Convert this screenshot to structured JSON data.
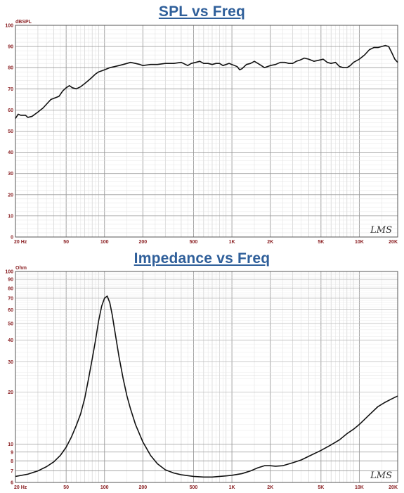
{
  "chart_data": [
    {
      "type": "line",
      "title": "SPL vs Freq",
      "ylabel": "dBSPL",
      "xscale": "log",
      "xlim": [
        20,
        20000
      ],
      "ylim": [
        0,
        100
      ],
      "grid": true,
      "xticks": [
        {
          "value": 20,
          "label": "20 Hz"
        },
        {
          "value": 50,
          "label": "50"
        },
        {
          "value": 100,
          "label": "100"
        },
        {
          "value": 200,
          "label": "200"
        },
        {
          "value": 500,
          "label": "500"
        },
        {
          "value": 1000,
          "label": "1K"
        },
        {
          "value": 2000,
          "label": "2K"
        },
        {
          "value": 5000,
          "label": "5K"
        },
        {
          "value": 10000,
          "label": "10K"
        },
        {
          "value": 20000,
          "label": "20K"
        }
      ],
      "yticks": [
        {
          "value": 0,
          "label": "0"
        },
        {
          "value": 10,
          "label": "10"
        },
        {
          "value": 20,
          "label": "20"
        },
        {
          "value": 30,
          "label": "30"
        },
        {
          "value": 40,
          "label": "40"
        },
        {
          "value": 50,
          "label": "50"
        },
        {
          "value": 60,
          "label": "60"
        },
        {
          "value": 70,
          "label": "70"
        },
        {
          "value": 80,
          "label": "80"
        },
        {
          "value": 90,
          "label": "90"
        },
        {
          "value": 100,
          "label": "100"
        }
      ],
      "watermark": "LMS",
      "series": [
        {
          "color": "#111111",
          "points": [
            [
              20,
              56
            ],
            [
              21,
              58
            ],
            [
              22,
              57.5
            ],
            [
              24,
              57.5
            ],
            [
              25,
              56.5
            ],
            [
              27,
              57
            ],
            [
              30,
              59
            ],
            [
              33,
              61
            ],
            [
              36,
              63.5
            ],
            [
              38,
              65
            ],
            [
              42,
              66
            ],
            [
              44,
              66.5
            ],
            [
              47,
              69
            ],
            [
              50,
              70.5
            ],
            [
              53,
              71.5
            ],
            [
              56,
              70.5
            ],
            [
              60,
              70
            ],
            [
              65,
              71
            ],
            [
              70,
              72.5
            ],
            [
              75,
              74
            ],
            [
              80,
              75.5
            ],
            [
              85,
              77
            ],
            [
              90,
              78
            ],
            [
              95,
              78.5
            ],
            [
              100,
              79
            ],
            [
              110,
              80
            ],
            [
              120,
              80.5
            ],
            [
              130,
              81
            ],
            [
              140,
              81.5
            ],
            [
              150,
              82
            ],
            [
              160,
              82.5
            ],
            [
              175,
              82
            ],
            [
              190,
              81.5
            ],
            [
              200,
              81
            ],
            [
              230,
              81.5
            ],
            [
              260,
              81.5
            ],
            [
              300,
              82
            ],
            [
              350,
              82
            ],
            [
              400,
              82.5
            ],
            [
              450,
              81
            ],
            [
              480,
              82
            ],
            [
              520,
              82.5
            ],
            [
              560,
              83
            ],
            [
              600,
              82
            ],
            [
              650,
              82
            ],
            [
              700,
              81.5
            ],
            [
              750,
              82
            ],
            [
              800,
              82
            ],
            [
              850,
              81
            ],
            [
              900,
              81.5
            ],
            [
              950,
              82
            ],
            [
              1000,
              81.5
            ],
            [
              1100,
              80.5
            ],
            [
              1150,
              79
            ],
            [
              1200,
              79.5
            ],
            [
              1300,
              81.5
            ],
            [
              1400,
              82
            ],
            [
              1500,
              83
            ],
            [
              1600,
              82
            ],
            [
              1700,
              81
            ],
            [
              1800,
              80
            ],
            [
              1900,
              80.5
            ],
            [
              2000,
              81
            ],
            [
              2200,
              81.5
            ],
            [
              2400,
              82.5
            ],
            [
              2600,
              82.5
            ],
            [
              2800,
              82
            ],
            [
              3000,
              82
            ],
            [
              3200,
              83
            ],
            [
              3400,
              83.5
            ],
            [
              3700,
              84.5
            ],
            [
              4000,
              84
            ],
            [
              4400,
              83
            ],
            [
              4800,
              83.5
            ],
            [
              5200,
              84
            ],
            [
              5600,
              82.5
            ],
            [
              6000,
              82
            ],
            [
              6500,
              82.5
            ],
            [
              7000,
              80.5
            ],
            [
              7500,
              80
            ],
            [
              8000,
              80
            ],
            [
              8500,
              81
            ],
            [
              9000,
              82.5
            ],
            [
              10000,
              84
            ],
            [
              11000,
              86
            ],
            [
              12000,
              88.5
            ],
            [
              13000,
              89.5
            ],
            [
              14000,
              89.5
            ],
            [
              15000,
              90
            ],
            [
              16000,
              90.5
            ],
            [
              17000,
              90
            ],
            [
              18000,
              87
            ],
            [
              19000,
              84
            ],
            [
              20000,
              82.5
            ]
          ]
        }
      ]
    },
    {
      "type": "line",
      "title": "Impedance vs Freq",
      "ylabel": "Ohm",
      "xscale": "log",
      "yscale": "log",
      "xlim": [
        20,
        20000
      ],
      "ylim": [
        6,
        100
      ],
      "grid": true,
      "xticks": [
        {
          "value": 20,
          "label": "20 Hz"
        },
        {
          "value": 50,
          "label": "50"
        },
        {
          "value": 100,
          "label": "100"
        },
        {
          "value": 200,
          "label": "200"
        },
        {
          "value": 500,
          "label": "500"
        },
        {
          "value": 1000,
          "label": "1K"
        },
        {
          "value": 2000,
          "label": "2K"
        },
        {
          "value": 5000,
          "label": "5K"
        },
        {
          "value": 10000,
          "label": "10K"
        },
        {
          "value": 20000,
          "label": "20K"
        }
      ],
      "yticks": [
        {
          "value": 6,
          "label": "6"
        },
        {
          "value": 7,
          "label": "7"
        },
        {
          "value": 8,
          "label": "8"
        },
        {
          "value": 9,
          "label": "9"
        },
        {
          "value": 10,
          "label": "10"
        },
        {
          "value": 20,
          "label": "20"
        },
        {
          "value": 30,
          "label": "30"
        },
        {
          "value": 40,
          "label": "40"
        },
        {
          "value": 50,
          "label": "50"
        },
        {
          "value": 60,
          "label": "60"
        },
        {
          "value": 70,
          "label": "70"
        },
        {
          "value": 80,
          "label": "80"
        },
        {
          "value": 90,
          "label": "90"
        },
        {
          "value": 100,
          "label": "100"
        }
      ],
      "watermark": "LMS",
      "series": [
        {
          "color": "#111111",
          "points": [
            [
              20,
              6.5
            ],
            [
              25,
              6.7
            ],
            [
              30,
              7.0
            ],
            [
              35,
              7.4
            ],
            [
              40,
              7.9
            ],
            [
              45,
              8.6
            ],
            [
              50,
              9.6
            ],
            [
              55,
              11
            ],
            [
              60,
              12.8
            ],
            [
              65,
              15.0
            ],
            [
              70,
              18.5
            ],
            [
              75,
              24
            ],
            [
              80,
              31
            ],
            [
              85,
              40
            ],
            [
              90,
              52
            ],
            [
              95,
              63
            ],
            [
              100,
              70
            ],
            [
              105,
              72
            ],
            [
              110,
              66
            ],
            [
              115,
              56
            ],
            [
              120,
              46
            ],
            [
              130,
              32
            ],
            [
              140,
              24
            ],
            [
              150,
              19
            ],
            [
              160,
              16
            ],
            [
              175,
              13
            ],
            [
              200,
              10.3
            ],
            [
              230,
              8.6
            ],
            [
              260,
              7.7
            ],
            [
              300,
              7.1
            ],
            [
              350,
              6.8
            ],
            [
              400,
              6.65
            ],
            [
              500,
              6.5
            ],
            [
              600,
              6.45
            ],
            [
              700,
              6.45
            ],
            [
              800,
              6.5
            ],
            [
              900,
              6.55
            ],
            [
              1000,
              6.6
            ],
            [
              1200,
              6.75
            ],
            [
              1400,
              7.0
            ],
            [
              1600,
              7.3
            ],
            [
              1800,
              7.5
            ],
            [
              2000,
              7.5
            ],
            [
              2200,
              7.45
            ],
            [
              2500,
              7.5
            ],
            [
              3000,
              7.8
            ],
            [
              3500,
              8.1
            ],
            [
              4000,
              8.5
            ],
            [
              5000,
              9.2
            ],
            [
              6000,
              9.9
            ],
            [
              7000,
              10.6
            ],
            [
              8000,
              11.5
            ],
            [
              9000,
              12.2
            ],
            [
              10000,
              13.0
            ],
            [
              12000,
              14.8
            ],
            [
              14000,
              16.5
            ],
            [
              16000,
              17.5
            ],
            [
              18000,
              18.3
            ],
            [
              20000,
              19.0
            ]
          ]
        }
      ]
    }
  ]
}
